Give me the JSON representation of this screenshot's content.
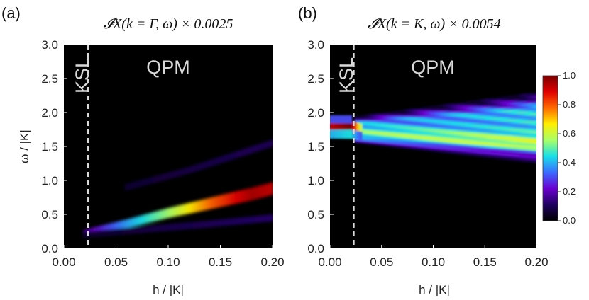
{
  "colors": {
    "background": "#000000",
    "annotation": "#d9d9d9",
    "colormap": [
      "#000000",
      "#1e0060",
      "#6a00d0",
      "#3a6cff",
      "#18e0e8",
      "#a8ff68",
      "#ffef00",
      "#ff6a00",
      "#e00000",
      "#7a0000"
    ]
  },
  "chart_data": [
    {
      "type": "heatmap",
      "panel_label": "(a)",
      "title": "𝓘X(k = Γ, ω) × 0.0025",
      "xlabel": "h / |K|",
      "ylabel": "ω / |K|",
      "xlim": [
        0.0,
        0.2
      ],
      "ylim": [
        0.0,
        3.0
      ],
      "xticks": [
        "0.00",
        "0.05",
        "0.10",
        "0.15",
        "0.20"
      ],
      "yticks": [
        "0.0",
        "0.5",
        "1.0",
        "1.5",
        "2.0",
        "2.5",
        "3.0"
      ],
      "phase_boundary_h": 0.023,
      "regions": [
        "KSL",
        "QPM"
      ],
      "bands": [
        {
          "h": [
            0.02,
            0.06,
            0.1,
            0.14,
            0.18,
            0.2
          ],
          "omega": [
            0.22,
            0.36,
            0.52,
            0.66,
            0.8,
            0.88
          ],
          "intensity": [
            0.18,
            0.38,
            0.55,
            0.78,
            0.95,
            0.92
          ]
        },
        {
          "h": [
            0.02,
            0.08,
            0.14,
            0.2
          ],
          "omega": [
            0.2,
            0.28,
            0.36,
            0.45
          ],
          "intensity": [
            0.05,
            0.08,
            0.1,
            0.12
          ]
        },
        {
          "h": [
            0.06,
            0.12,
            0.18,
            0.2
          ],
          "omega": [
            0.9,
            1.15,
            1.45,
            1.55
          ],
          "intensity": [
            0.06,
            0.08,
            0.1,
            0.1
          ]
        }
      ]
    },
    {
      "type": "heatmap",
      "panel_label": "(b)",
      "title": "𝓘X(k = K, ω) × 0.0054",
      "xlabel": "h / |K|",
      "ylabel": "ω / |K|",
      "xlim": [
        0.0,
        0.2
      ],
      "ylim": [
        0.0,
        3.0
      ],
      "xticks": [
        "0.00",
        "0.05",
        "0.10",
        "0.15",
        "0.20"
      ],
      "yticks": [
        "0.0",
        "0.5",
        "1.0",
        "1.5",
        "2.0",
        "2.5",
        "3.0"
      ],
      "phase_boundary_h": 0.023,
      "regions": [
        "KSL",
        "QPM"
      ],
      "bands": [
        {
          "h": [
            0.0,
            0.02,
            0.03
          ],
          "omega": [
            1.78,
            1.78,
            1.76
          ],
          "intensity": [
            0.92,
            1.0,
            0.6
          ]
        },
        {
          "h": [
            0.0,
            0.02,
            0.03
          ],
          "omega": [
            1.68,
            1.68,
            1.66
          ],
          "intensity": [
            0.4,
            0.45,
            0.3
          ]
        },
        {
          "h": [
            0.0,
            0.02
          ],
          "omega": [
            1.9,
            1.9
          ],
          "intensity": [
            0.3,
            0.3
          ]
        }
      ],
      "continuum": {
        "h_start": 0.025,
        "h_end": 0.2,
        "upper": [
          1.95,
          2.3
        ],
        "lower": [
          1.55,
          1.25
        ],
        "center": [
          1.72,
          1.55
        ],
        "intensity": [
          0.32,
          0.42
        ]
      }
    }
  ],
  "colorbar": {
    "range": [
      0.0,
      1.0
    ],
    "ticks": [
      "0.0",
      "0.2",
      "0.4",
      "0.6",
      "0.8",
      "1.0"
    ]
  }
}
